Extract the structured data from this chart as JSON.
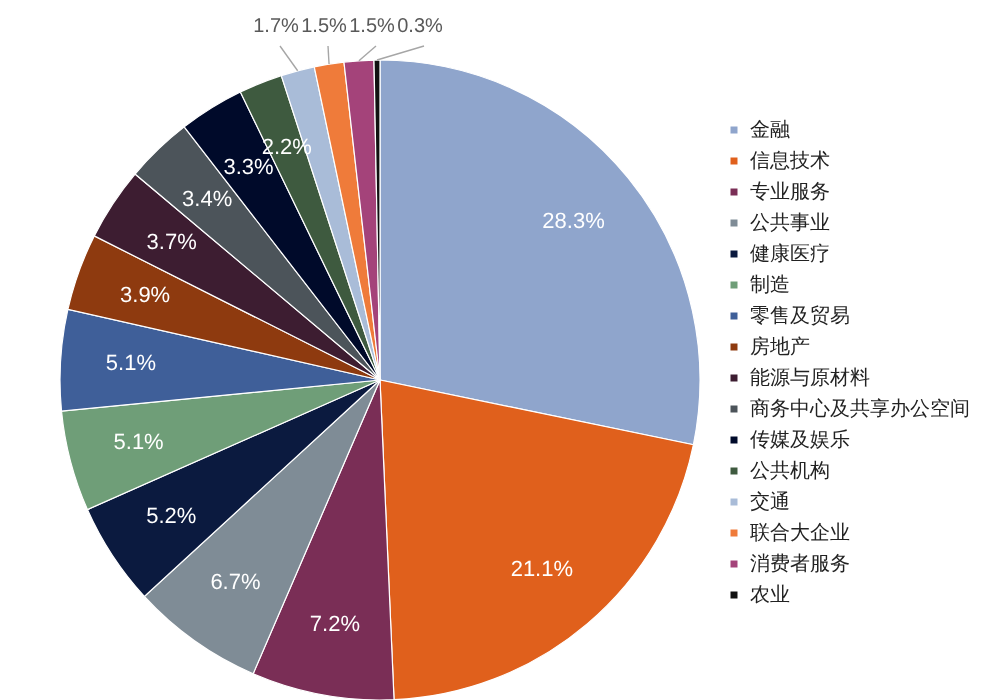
{
  "chart_data": {
    "type": "pie",
    "categories": [
      "金融",
      "信息技术",
      "专业服务",
      "公共事业",
      "健康医疗",
      "制造",
      "零售及贸易",
      "房地产",
      "能源与原材料",
      "商务中心及共享办公空间",
      "传媒及娱乐",
      "公共机构",
      "交通",
      "联合大企业",
      "消费者服务",
      "农业"
    ],
    "values": [
      28.3,
      21.1,
      7.2,
      6.7,
      5.2,
      5.1,
      5.1,
      3.9,
      3.7,
      3.4,
      3.3,
      2.2,
      1.7,
      1.5,
      1.5,
      0.3
    ],
    "value_labels": [
      "28.3%",
      "21.1%",
      "7.2%",
      "6.7%",
      "5.2%",
      "5.1%",
      "5.1%",
      "3.9%",
      "3.7%",
      "3.4%",
      "3.3%",
      "2.2%",
      "1.7%",
      "1.5%",
      "1.5%",
      "0.3%"
    ],
    "colors": [
      "#8fa5cc",
      "#e0601c",
      "#7a2e56",
      "#7f8c96",
      "#0b1a3f",
      "#6f9e78",
      "#3f5f99",
      "#8e3a0f",
      "#3d1d31",
      "#4c545a",
      "#000a2a",
      "#3e5a3f",
      "#a9bcd8",
      "#ef7b3a",
      "#a4437a",
      "#111111"
    ],
    "legend": "right"
  }
}
